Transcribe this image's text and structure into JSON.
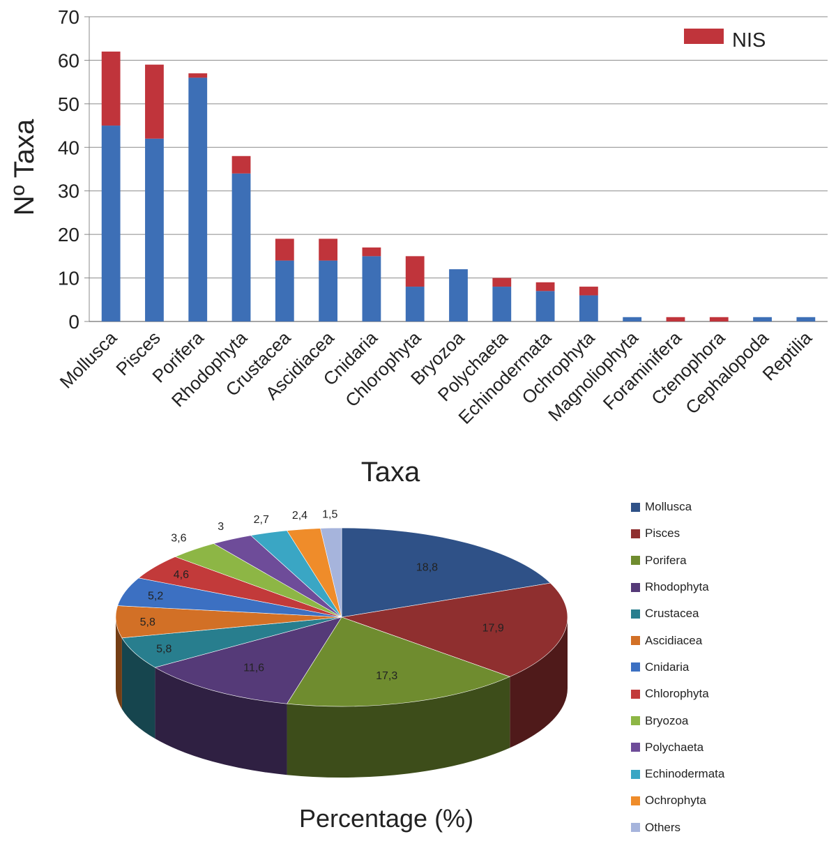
{
  "chart_data": [
    {
      "type": "bar",
      "stacked": true,
      "xlabel": "Taxa",
      "ylabel": "Nº Taxa",
      "ylim": [
        0,
        70
      ],
      "yticks": [
        0,
        10,
        20,
        30,
        40,
        50,
        60,
        70
      ],
      "grid": true,
      "legend_position": "top-right",
      "categories": [
        "Mollusca",
        "Pisces",
        "Porifera",
        "Rhodophyta",
        "Crustacea",
        "Ascidiacea",
        "Cnidaria",
        "Chlorophyta",
        "Bryozoa",
        "Polychaeta",
        "Echinodermata",
        "Ochrophyta",
        "Magnoliophyta",
        "Foraminifera",
        "Ctenophora",
        "Cephalopoda",
        "Reptilia"
      ],
      "series": [
        {
          "color": "#3d6fb6",
          "values": [
            45,
            42,
            56,
            34,
            14,
            14,
            15,
            8,
            12,
            8,
            7,
            6,
            1,
            0,
            0,
            1,
            1
          ]
        },
        {
          "name": "NIS",
          "color": "#c0343b",
          "values": [
            17,
            17,
            1,
            4,
            5,
            5,
            2,
            7,
            0,
            2,
            2,
            2,
            0,
            1,
            1,
            0,
            0
          ]
        }
      ]
    },
    {
      "type": "pie",
      "style": "3d",
      "xlabel": "Percentage (%)",
      "legend_position": "right",
      "slices": [
        {
          "label": "Mollusca",
          "value": 18.8,
          "text": "18,8",
          "color": "#2f5187"
        },
        {
          "label": "Pisces",
          "value": 17.9,
          "text": "17,9",
          "color": "#8f2f2f"
        },
        {
          "label": "Porifera",
          "value": 17.3,
          "text": "17,3",
          "color": "#6f8c2f"
        },
        {
          "label": "Rhodophyta",
          "value": 11.6,
          "text": "11,6",
          "color": "#553a78"
        },
        {
          "label": "Crustacea",
          "value": 5.8,
          "text": "5,8",
          "color": "#287e8e"
        },
        {
          "label": "Ascidiacea",
          "value": 5.8,
          "text": "5,8",
          "color": "#d27026"
        },
        {
          "label": "Cnidaria",
          "value": 5.2,
          "text": "5,2",
          "color": "#3c70c2"
        },
        {
          "label": "Chlorophyta",
          "value": 4.6,
          "text": "4,6",
          "color": "#c23a3a"
        },
        {
          "label": "Bryozoa",
          "value": 3.6,
          "text": "3,6",
          "color": "#8db645"
        },
        {
          "label": "Polychaeta",
          "value": 3.0,
          "text": "3",
          "color": "#6e4c99"
        },
        {
          "label": "Echinodermata",
          "value": 2.7,
          "text": "2,7",
          "color": "#3aa6c4"
        },
        {
          "label": "Ochrophyta",
          "value": 2.4,
          "text": "2,4",
          "color": "#ef8c2a"
        },
        {
          "label": "Others",
          "value": 1.5,
          "text": "1,5",
          "color": "#a6b4dc"
        }
      ]
    }
  ]
}
